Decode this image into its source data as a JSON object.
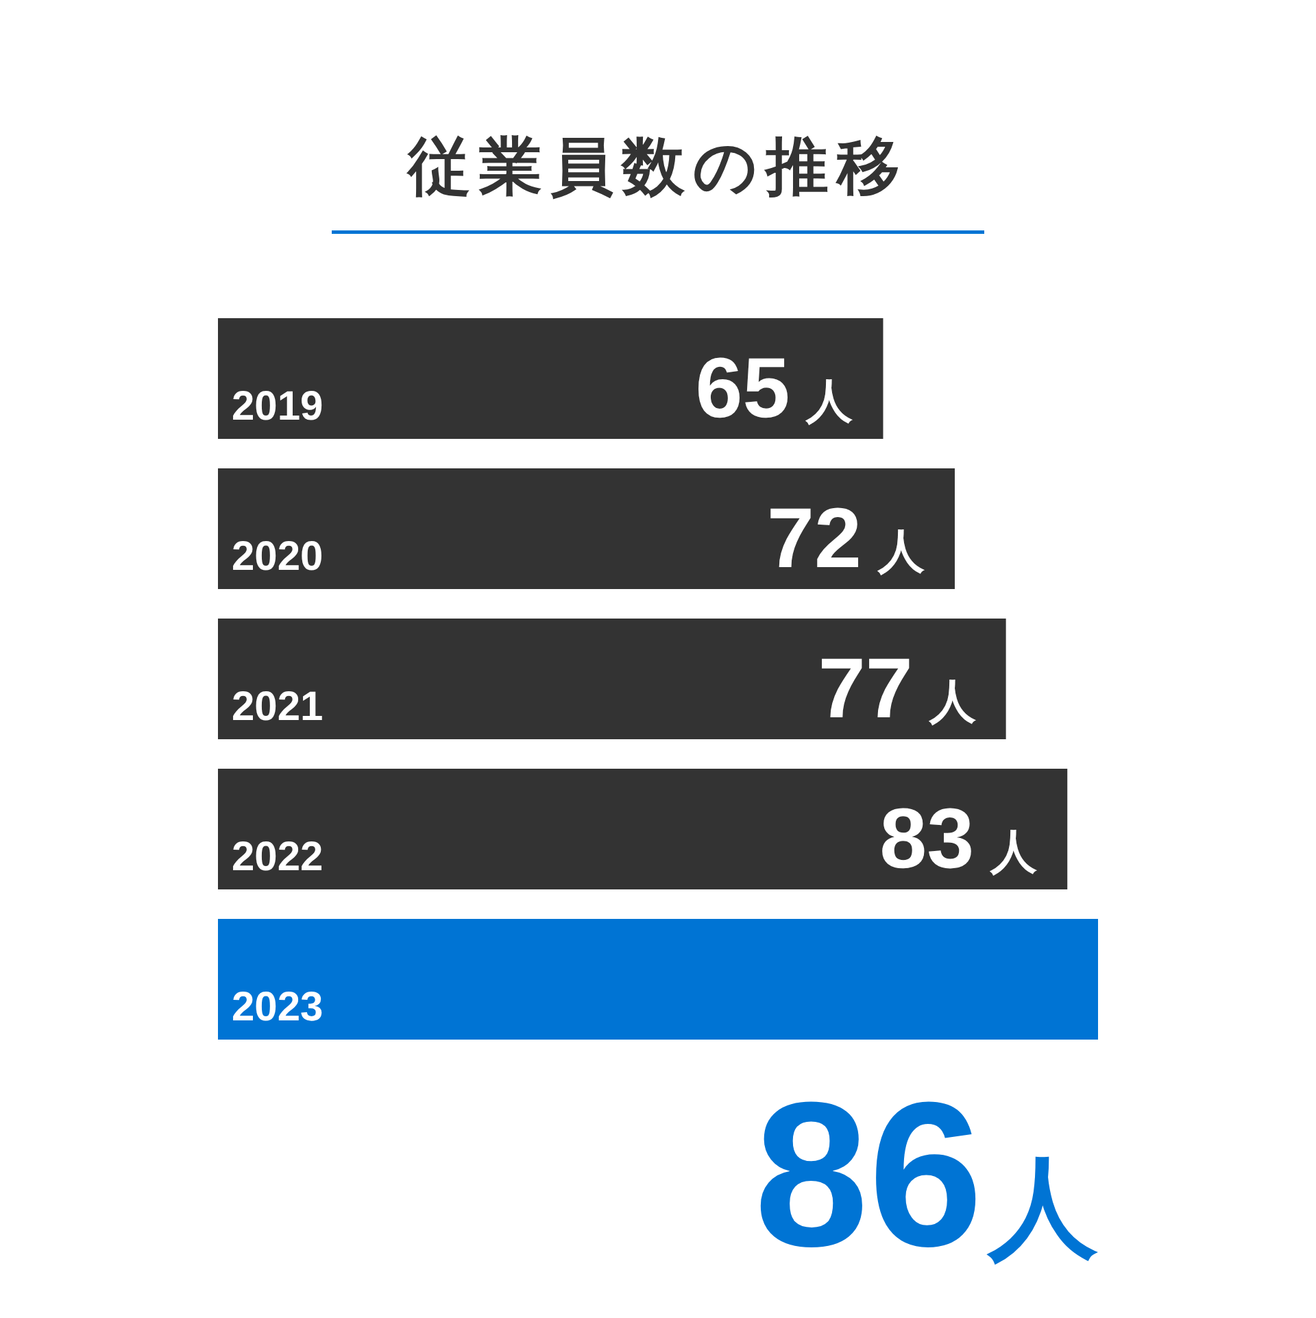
{
  "chart_data": {
    "type": "bar",
    "orientation": "horizontal",
    "title": "従業員数の推移",
    "categories": [
      "2019",
      "2020",
      "2021",
      "2022",
      "2023"
    ],
    "values": [
      65,
      72,
      77,
      83,
      86
    ],
    "colors": [
      "#333333",
      "#333333",
      "#333333",
      "#333333",
      "#0074d4"
    ],
    "value_labels": [
      "65人",
      "72人",
      "77人",
      "83人",
      "86人"
    ]
  }
}
